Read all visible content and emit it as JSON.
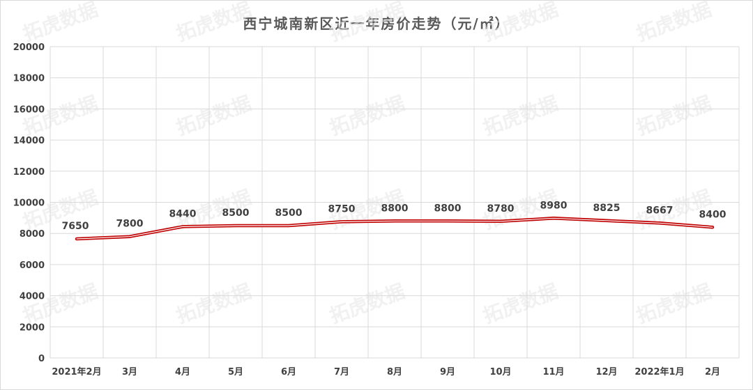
{
  "chart_data": {
    "type": "line",
    "title": "西宁城南新区近一年房价走势（元/㎡）",
    "categories": [
      "2021年2月",
      "3月",
      "4月",
      "5月",
      "6月",
      "7月",
      "8月",
      "9月",
      "10月",
      "11月",
      "12月",
      "2022年1月",
      "2月"
    ],
    "series": [
      {
        "values": [
          7650,
          7800,
          8440,
          8500,
          8500,
          8750,
          8800,
          8800,
          8780,
          8980,
          8825,
          8667,
          8400
        ]
      }
    ],
    "ylim": [
      0,
      20000
    ],
    "yticks": [
      0,
      2000,
      4000,
      6000,
      8000,
      10000,
      12000,
      14000,
      16000,
      18000,
      20000
    ],
    "grid": true,
    "legend": "none",
    "line_color": "#c00000",
    "line_inner_color": "#ffffff"
  },
  "watermark": "拓虎数据"
}
